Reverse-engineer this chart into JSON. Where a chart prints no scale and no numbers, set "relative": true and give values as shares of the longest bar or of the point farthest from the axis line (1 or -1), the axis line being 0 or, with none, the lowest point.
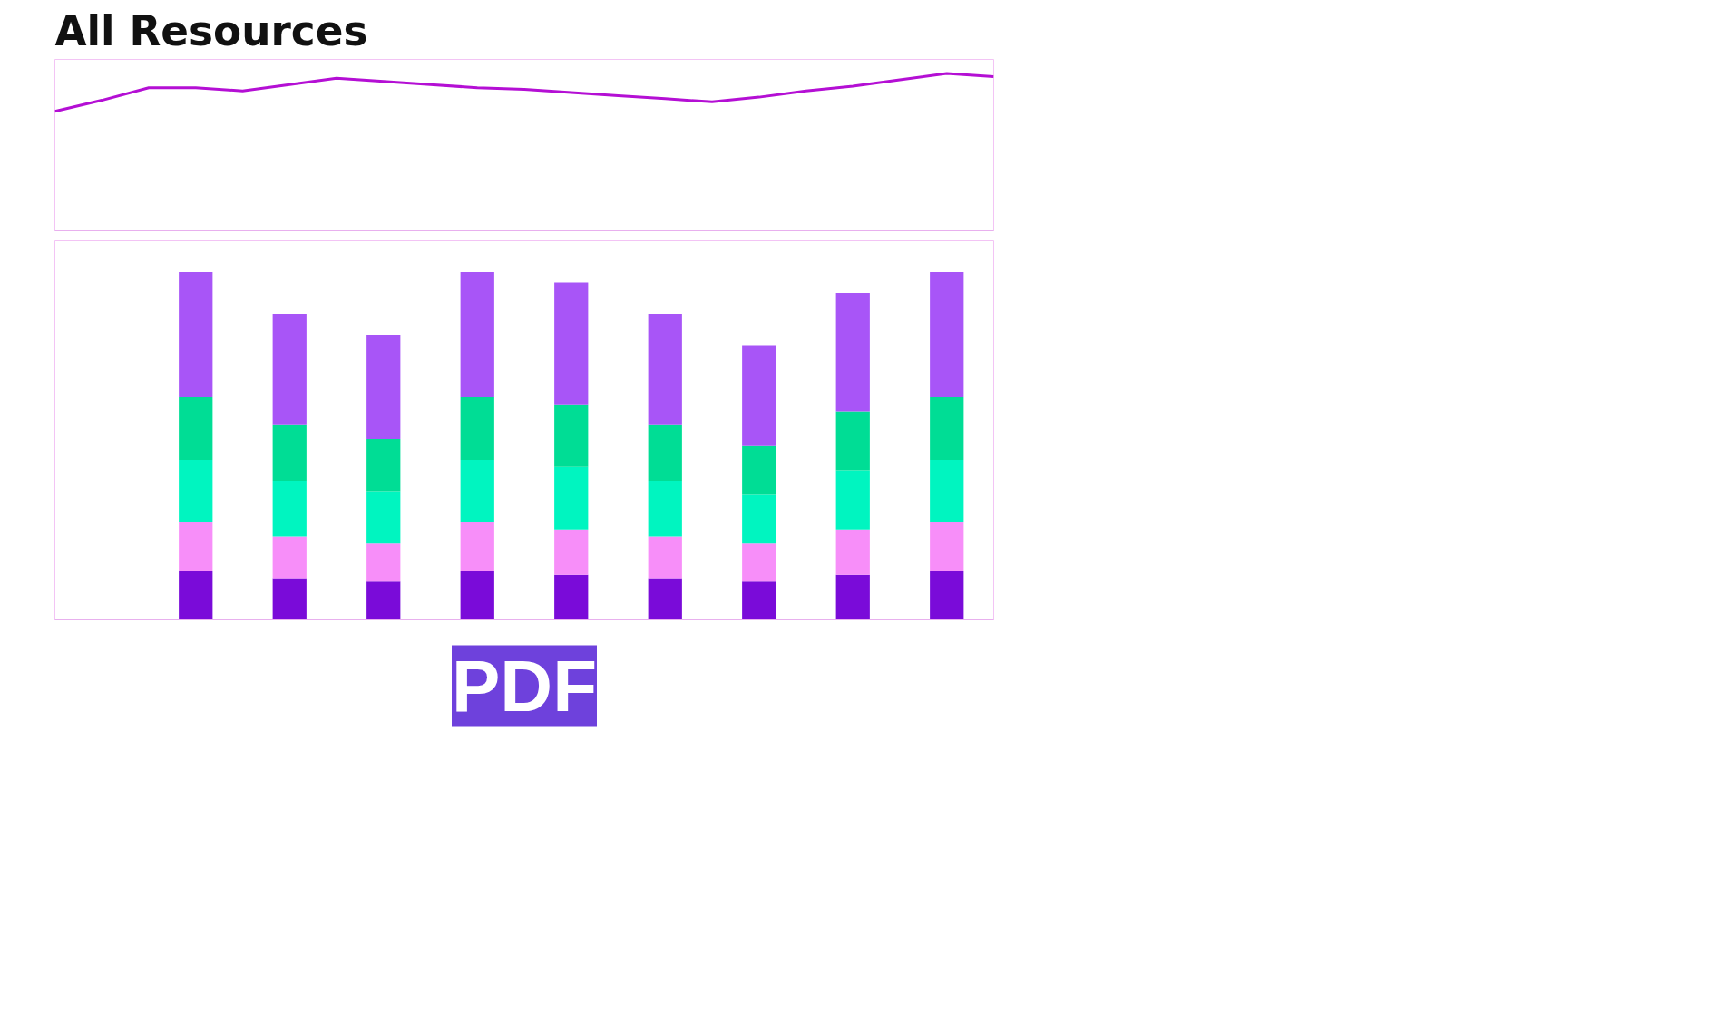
{
  "chart_data": [
    {
      "type": "line",
      "title": "All Resources",
      "relative": true,
      "tick_labels": false,
      "categories": [
        null,
        null,
        null,
        null,
        null,
        null,
        null,
        null,
        null,
        null,
        null,
        null,
        null,
        null,
        null,
        null,
        null,
        null,
        null,
        null,
        null
      ],
      "series": [
        {
          "color": "#b40fd4",
          "values": [
            0.76,
            0.83,
            0.91,
            0.91,
            0.89,
            0.93,
            0.97,
            0.95,
            0.93,
            0.91,
            0.9,
            0.88,
            0.86,
            0.84,
            0.82,
            0.85,
            0.89,
            0.92,
            0.96,
            1,
            0.98
          ]
        }
      ]
    },
    {
      "type": "bar",
      "annotations": [
        "PDF"
      ],
      "relative": true,
      "stacked": true,
      "tick_labels": false,
      "categories": [
        null,
        null,
        null,
        null,
        null,
        null,
        null,
        null,
        null
      ],
      "series": [
        {
          "color": "#7a0bd9",
          "values": [
            0.14,
            0.12,
            0.11,
            0.14,
            0.13,
            0.12,
            0.11,
            0.13,
            0.14
          ]
        },
        {
          "color": "#f78ef9",
          "values": [
            0.14,
            0.12,
            0.11,
            0.14,
            0.13,
            0.12,
            0.11,
            0.13,
            0.14
          ]
        },
        {
          "color": "#00f5c0",
          "values": [
            0.18,
            0.16,
            0.15,
            0.18,
            0.18,
            0.16,
            0.14,
            0.17,
            0.18
          ]
        },
        {
          "color": "#00dd95",
          "values": [
            0.18,
            0.16,
            0.15,
            0.18,
            0.18,
            0.16,
            0.14,
            0.17,
            0.18
          ]
        },
        {
          "color": "#a855f7",
          "values": [
            0.36,
            0.32,
            0.3,
            0.36,
            0.35,
            0.32,
            0.29,
            0.34,
            0.36
          ]
        }
      ]
    }
  ]
}
